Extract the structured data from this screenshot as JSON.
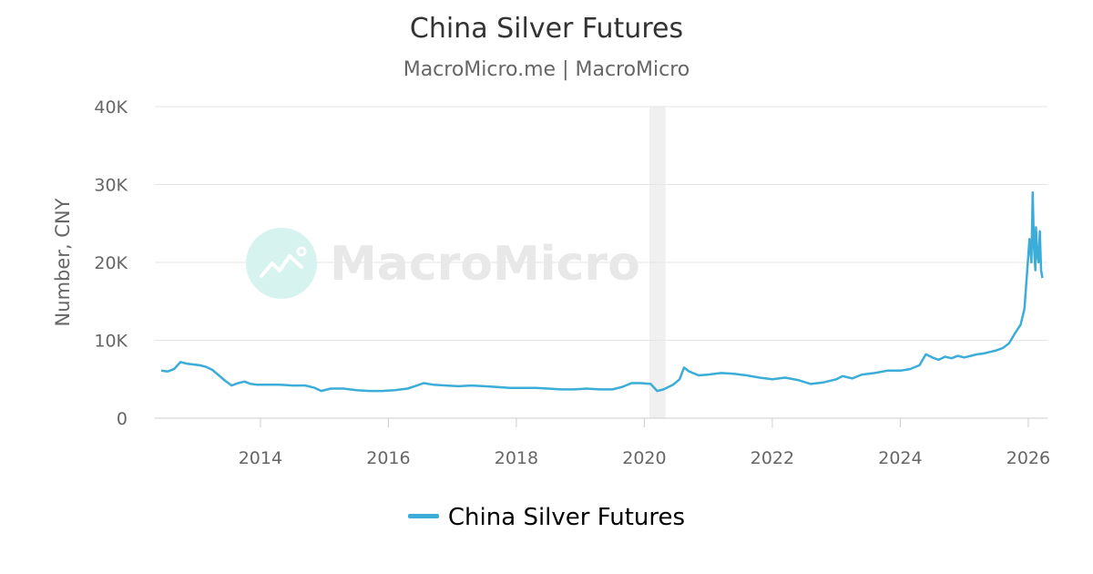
{
  "chart_data": {
    "type": "line",
    "title": "China Silver Futures",
    "subtitle": "MacroMicro.me | MacroMicro",
    "ylabel": "Number, CNY",
    "xlabel": "",
    "ylim": [
      0,
      40000
    ],
    "yticks": [
      0,
      10000,
      20000,
      30000,
      40000
    ],
    "ytick_labels": [
      "0",
      "10K",
      "20K",
      "30K",
      "40K"
    ],
    "xlim": [
      2012.35,
      2026.3
    ],
    "xticks": [
      2014,
      2016,
      2018,
      2020,
      2022,
      2024,
      2026
    ],
    "xtick_labels": [
      "2014",
      "2016",
      "2018",
      "2020",
      "2022",
      "2024",
      "2026"
    ],
    "grid": true,
    "legend_position": "bottom",
    "shaded_regions": [
      [
        2020.08,
        2020.33
      ]
    ],
    "series": [
      {
        "name": "China Silver Futures",
        "color": "#3cacd8",
        "x": [
          2012.45,
          2012.55,
          2012.65,
          2012.75,
          2012.85,
          2012.95,
          2013.05,
          2013.15,
          2013.25,
          2013.35,
          2013.45,
          2013.55,
          2013.65,
          2013.75,
          2013.85,
          2013.95,
          2014.1,
          2014.3,
          2014.5,
          2014.7,
          2014.85,
          2014.95,
          2015.1,
          2015.3,
          2015.5,
          2015.7,
          2015.9,
          2016.1,
          2016.3,
          2016.45,
          2016.55,
          2016.7,
          2016.9,
          2017.1,
          2017.3,
          2017.5,
          2017.7,
          2017.9,
          2018.1,
          2018.3,
          2018.5,
          2018.7,
          2018.9,
          2019.1,
          2019.3,
          2019.5,
          2019.65,
          2019.8,
          2019.95,
          2020.1,
          2020.2,
          2020.3,
          2020.45,
          2020.55,
          2020.62,
          2020.7,
          2020.85,
          2021.0,
          2021.2,
          2021.4,
          2021.6,
          2021.8,
          2022.0,
          2022.2,
          2022.4,
          2022.6,
          2022.8,
          2023.0,
          2023.1,
          2023.25,
          2023.4,
          2023.6,
          2023.8,
          2024.0,
          2024.15,
          2024.3,
          2024.4,
          2024.5,
          2024.6,
          2024.7,
          2024.8,
          2024.9,
          2025.0,
          2025.1,
          2025.2,
          2025.3,
          2025.4,
          2025.5,
          2025.6,
          2025.7,
          2025.8,
          2025.88,
          2025.94,
          2025.98,
          2026.02,
          2026.05,
          2026.07,
          2026.09,
          2026.11,
          2026.12,
          2026.14,
          2026.16,
          2026.18,
          2026.2,
          2026.22
        ],
        "y": [
          6100,
          6000,
          6300,
          7200,
          7000,
          6900,
          6800,
          6600,
          6200,
          5500,
          4800,
          4200,
          4500,
          4700,
          4400,
          4300,
          4300,
          4300,
          4200,
          4200,
          3900,
          3500,
          3800,
          3800,
          3600,
          3500,
          3500,
          3600,
          3800,
          4200,
          4500,
          4300,
          4200,
          4100,
          4200,
          4100,
          4000,
          3900,
          3900,
          3900,
          3800,
          3700,
          3700,
          3800,
          3700,
          3700,
          4000,
          4500,
          4500,
          4400,
          3500,
          3700,
          4300,
          5000,
          6500,
          6000,
          5500,
          5600,
          5800,
          5700,
          5500,
          5200,
          5000,
          5200,
          4900,
          4400,
          4600,
          5000,
          5400,
          5100,
          5600,
          5800,
          6100,
          6100,
          6300,
          6800,
          8200,
          7800,
          7500,
          7900,
          7700,
          8000,
          7800,
          8000,
          8200,
          8300,
          8500,
          8700,
          9000,
          9600,
          11000,
          12000,
          14000,
          18500,
          23000,
          20000,
          29000,
          22000,
          19000,
          24500,
          21000,
          20000,
          24000,
          19000,
          18000
        ]
      }
    ]
  },
  "watermark": {
    "text": "MacroMicro",
    "icon": "macromicro-logo-icon"
  }
}
